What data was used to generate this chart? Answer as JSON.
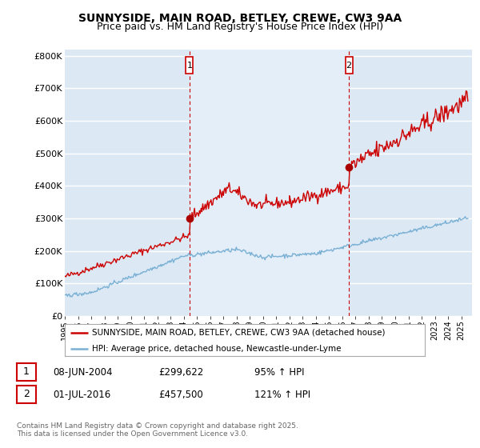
{
  "title": "SUNNYSIDE, MAIN ROAD, BETLEY, CREWE, CW3 9AA",
  "subtitle": "Price paid vs. HM Land Registry's House Price Index (HPI)",
  "ylabel_ticks": [
    "£0",
    "£100K",
    "£200K",
    "£300K",
    "£400K",
    "£500K",
    "£600K",
    "£700K",
    "£800K"
  ],
  "ytick_values": [
    0,
    100000,
    200000,
    300000,
    400000,
    500000,
    600000,
    700000,
    800000
  ],
  "ylim": [
    0,
    820000
  ],
  "xlim_start": 1995.0,
  "xlim_end": 2025.8,
  "background_color": "#dce9f5",
  "between_vlines_color": "#e8f0f8",
  "grid_color": "#ffffff",
  "red_line_color": "#cc0000",
  "blue_line_color": "#7ab0d4",
  "marker1_x": 2004.44,
  "marker1_y": 299622,
  "marker2_x": 2016.5,
  "marker2_y": 457500,
  "vline_color": "#cc0000",
  "annotation1": {
    "label": "1",
    "date": "08-JUN-2004",
    "price": "£299,622",
    "pct": "95% ↑ HPI"
  },
  "annotation2": {
    "label": "2",
    "date": "01-JUL-2016",
    "price": "£457,500",
    "pct": "121% ↑ HPI"
  },
  "legend_line1": "SUNNYSIDE, MAIN ROAD, BETLEY, CREWE, CW3 9AA (detached house)",
  "legend_line2": "HPI: Average price, detached house, Newcastle-under-Lyme",
  "footer": "Contains HM Land Registry data © Crown copyright and database right 2025.\nThis data is licensed under the Open Government Licence v3.0.",
  "title_fontsize": 10,
  "subtitle_fontsize": 9
}
